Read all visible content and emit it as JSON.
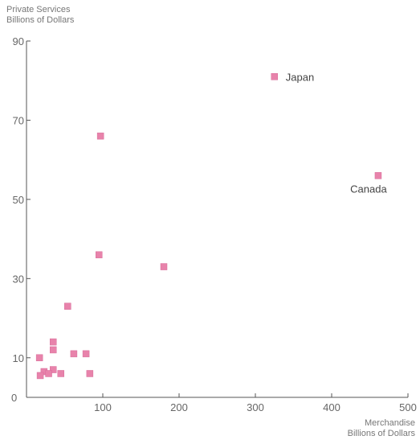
{
  "chart_data": {
    "type": "scatter",
    "ylabel_line1": "Private Services",
    "ylabel_line2": "Billions of Dollars",
    "xlabel_line1": "Merchandise",
    "xlabel_line2": "Billions of Dollars",
    "xlim": [
      0,
      500
    ],
    "ylim": [
      0,
      90
    ],
    "x_ticks": [
      0,
      100,
      200,
      300,
      400,
      500
    ],
    "y_ticks": [
      10,
      30,
      50,
      70,
      90
    ],
    "y_origin_label": "0",
    "marker_color": "#e883ab",
    "grid": false,
    "points": [
      {
        "x": 325,
        "y": 81,
        "label": "Japan"
      },
      {
        "x": 461,
        "y": 56,
        "label": "Canada"
      },
      {
        "x": 97,
        "y": 66
      },
      {
        "x": 95,
        "y": 36
      },
      {
        "x": 180,
        "y": 33
      },
      {
        "x": 54,
        "y": 23
      },
      {
        "x": 35,
        "y": 14
      },
      {
        "x": 35,
        "y": 12
      },
      {
        "x": 17,
        "y": 10
      },
      {
        "x": 62,
        "y": 11
      },
      {
        "x": 78,
        "y": 11
      },
      {
        "x": 35,
        "y": 7
      },
      {
        "x": 23,
        "y": 6.5
      },
      {
        "x": 29,
        "y": 6
      },
      {
        "x": 45,
        "y": 6
      },
      {
        "x": 83,
        "y": 6
      },
      {
        "x": 18,
        "y": 5.5
      }
    ]
  }
}
